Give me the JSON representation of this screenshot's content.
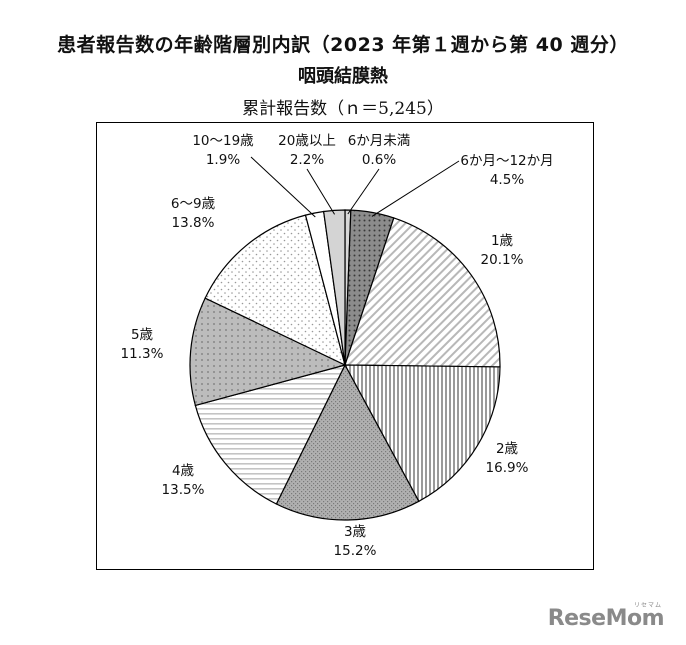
{
  "header": {
    "title": "患者報告数の年齢階層別内訳（2023 年第１週から第 40 週分）",
    "subtitle": "咽頭結膜熱",
    "note": "累計報告数（ｎ＝5,245）"
  },
  "brand": {
    "logo": "ReseMom",
    "logo_small": "リセマム"
  },
  "chart_data": {
    "type": "pie",
    "title": "咽頭結膜熱",
    "total_label": "累計報告数（ｎ＝5,245）",
    "unit": "%",
    "direction": "clockwise from top",
    "slices": [
      {
        "label": "6か月未満",
        "value": 0.6,
        "value_text": "0.6%",
        "pattern": "light-gray"
      },
      {
        "label": "6か月～12か月",
        "value": 4.5,
        "value_text": "4.5%",
        "pattern": "dark-dots"
      },
      {
        "label": "1歳",
        "value": 20.1,
        "value_text": "20.1%",
        "pattern": "diagonal-stripes"
      },
      {
        "label": "2歳",
        "value": 16.9,
        "value_text": "16.9%",
        "pattern": "vertical-stripes"
      },
      {
        "label": "3歳",
        "value": 15.2,
        "value_text": "15.2%",
        "pattern": "gray-cross"
      },
      {
        "label": "4歳",
        "value": 13.5,
        "value_text": "13.5%",
        "pattern": "horizontal-stripes"
      },
      {
        "label": "5歳",
        "value": 11.3,
        "value_text": "11.3%",
        "pattern": "gray-dots"
      },
      {
        "label": "6～9歳",
        "value": 13.8,
        "value_text": "13.8%",
        "pattern": "sparse-dots"
      },
      {
        "label": "10～19歳",
        "value": 1.9,
        "value_text": "1.9%",
        "pattern": "white"
      },
      {
        "label": "20歳以上",
        "value": 2.2,
        "value_text": "2.2%",
        "pattern": "gray"
      }
    ]
  }
}
